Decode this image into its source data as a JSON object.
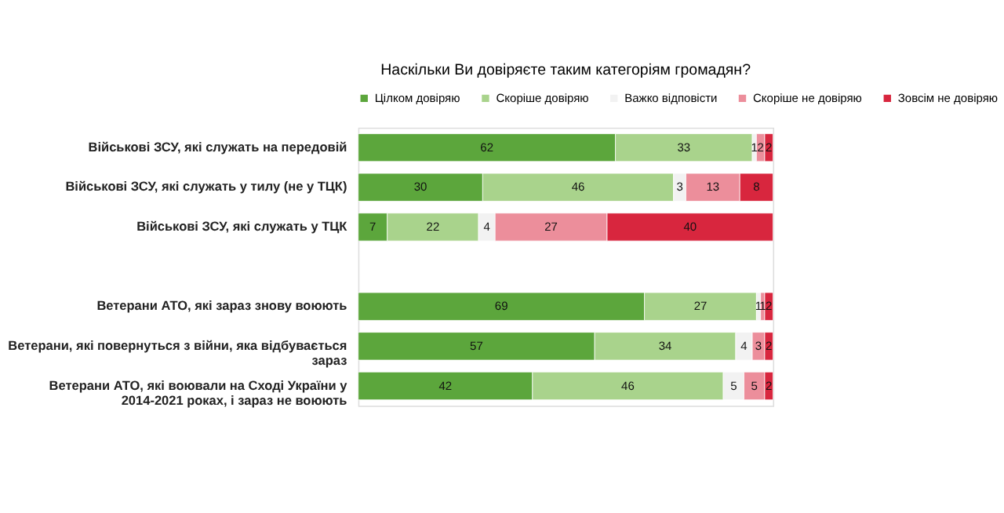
{
  "chart_data": {
    "type": "bar",
    "orientation": "horizontal",
    "stacked": true,
    "data_labels": true,
    "legend": "top",
    "title": "Наскільки Ви довіряєте таким категоріям громадян?",
    "categories": [
      "Військові ЗСУ, які служать на передовій",
      "Військові ЗСУ, які служать у тилу (не у ТЦК)",
      "Військові ЗСУ, які служать у ТЦК",
      null,
      "Ветерани АТО, які зараз знову воюють",
      "Ветерани, які повернуться з війни, яка відбувається зараз",
      "Ветерани АТО, які воювали на Сході України у 2014-2021 роках, і зараз не воюють"
    ],
    "series": [
      {
        "name": "Цілком довіряю",
        "color": "#5ca63c",
        "values": [
          62,
          30,
          7,
          null,
          69,
          57,
          42
        ]
      },
      {
        "name": "Скоріше довіряю",
        "color": "#a9d38c",
        "values": [
          33,
          46,
          22,
          null,
          27,
          34,
          46
        ]
      },
      {
        "name": "Важко відповісти",
        "color": "#f2f2f2",
        "values": [
          1,
          3,
          4,
          null,
          1,
          4,
          5
        ]
      },
      {
        "name": "Скоріше не довіряю",
        "color": "#ec8e9b",
        "values": [
          2,
          13,
          27,
          null,
          1,
          3,
          5
        ]
      },
      {
        "name": "Зовсім не довіряю",
        "color": "#d8263e",
        "values": [
          2,
          8,
          40,
          null,
          2,
          2,
          2
        ]
      }
    ]
  }
}
